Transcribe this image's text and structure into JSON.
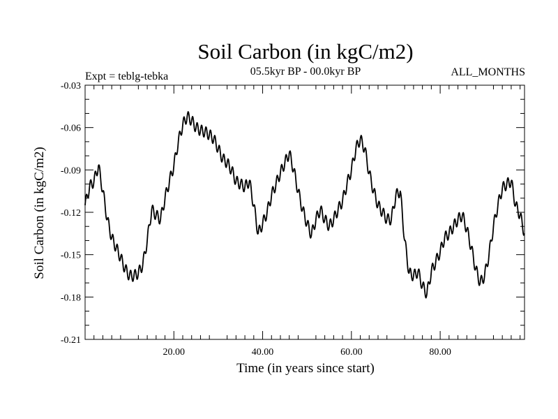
{
  "chart_data": {
    "type": "line",
    "title": "Soil Carbon (in kgC/m2)",
    "subtitle": "05.5kyr BP - 00.0kyr BP",
    "left_note": "Expt = teblg-tebka",
    "right_note": "ALL_MONTHS",
    "xlabel": "Time (in years since start)",
    "ylabel": "Soil Carbon (in kgC/m2)",
    "xlim": [
      0,
      99
    ],
    "ylim": [
      -0.21,
      -0.03
    ],
    "xticks": [
      20,
      40,
      60,
      80
    ],
    "xtick_labels": [
      "20.00",
      "40.00",
      "60.00",
      "80.00"
    ],
    "yticks": [
      -0.03,
      -0.06,
      -0.09,
      -0.12,
      -0.15,
      -0.18,
      -0.21
    ],
    "ytick_labels": [
      "-0.03",
      "-0.06",
      "-0.09",
      "-0.12",
      "-0.15",
      "-0.18",
      "-0.21"
    ],
    "grid": false,
    "series": [
      {
        "name": "teblg-tebka",
        "color": "#000000",
        "x": [
          0,
          1,
          2,
          3,
          4,
          5,
          6,
          7,
          8,
          9,
          10,
          11,
          12,
          13,
          14,
          15,
          16,
          17,
          18,
          19,
          20,
          21,
          22,
          23,
          24,
          25,
          26,
          27,
          28,
          29,
          30,
          31,
          32,
          33,
          34,
          35,
          36,
          37,
          38,
          39,
          40,
          41,
          42,
          43,
          44,
          45,
          46,
          47,
          48,
          49,
          50,
          51,
          52,
          53,
          54,
          55,
          56,
          57,
          58,
          59,
          60,
          61,
          62,
          63,
          64,
          65,
          66,
          67,
          68,
          69,
          70,
          71,
          72,
          73,
          74,
          75,
          76,
          77,
          78,
          79,
          80,
          81,
          82,
          83,
          84,
          85,
          86,
          87,
          88,
          89,
          90,
          91,
          92,
          93,
          94,
          95,
          96,
          97,
          98,
          99
        ],
        "values": [
          -0.115,
          -0.102,
          -0.098,
          -0.087,
          -0.105,
          -0.125,
          -0.138,
          -0.145,
          -0.152,
          -0.16,
          -0.165,
          -0.165,
          -0.163,
          -0.157,
          -0.14,
          -0.118,
          -0.122,
          -0.125,
          -0.11,
          -0.098,
          -0.087,
          -0.07,
          -0.058,
          -0.052,
          -0.055,
          -0.06,
          -0.062,
          -0.063,
          -0.065,
          -0.068,
          -0.075,
          -0.082,
          -0.085,
          -0.09,
          -0.098,
          -0.1,
          -0.102,
          -0.098,
          -0.115,
          -0.135,
          -0.128,
          -0.12,
          -0.108,
          -0.1,
          -0.092,
          -0.085,
          -0.078,
          -0.09,
          -0.105,
          -0.118,
          -0.128,
          -0.136,
          -0.125,
          -0.118,
          -0.125,
          -0.13,
          -0.125,
          -0.118,
          -0.112,
          -0.1,
          -0.09,
          -0.075,
          -0.068,
          -0.075,
          -0.092,
          -0.105,
          -0.115,
          -0.12,
          -0.125,
          -0.125,
          -0.108,
          -0.105,
          -0.14,
          -0.163,
          -0.165,
          -0.162,
          -0.172,
          -0.178,
          -0.162,
          -0.155,
          -0.148,
          -0.138,
          -0.135,
          -0.13,
          -0.125,
          -0.122,
          -0.132,
          -0.145,
          -0.16,
          -0.17,
          -0.165,
          -0.15,
          -0.13,
          -0.115,
          -0.103,
          -0.1,
          -0.098,
          -0.115,
          -0.122,
          -0.135
        ]
      }
    ]
  }
}
